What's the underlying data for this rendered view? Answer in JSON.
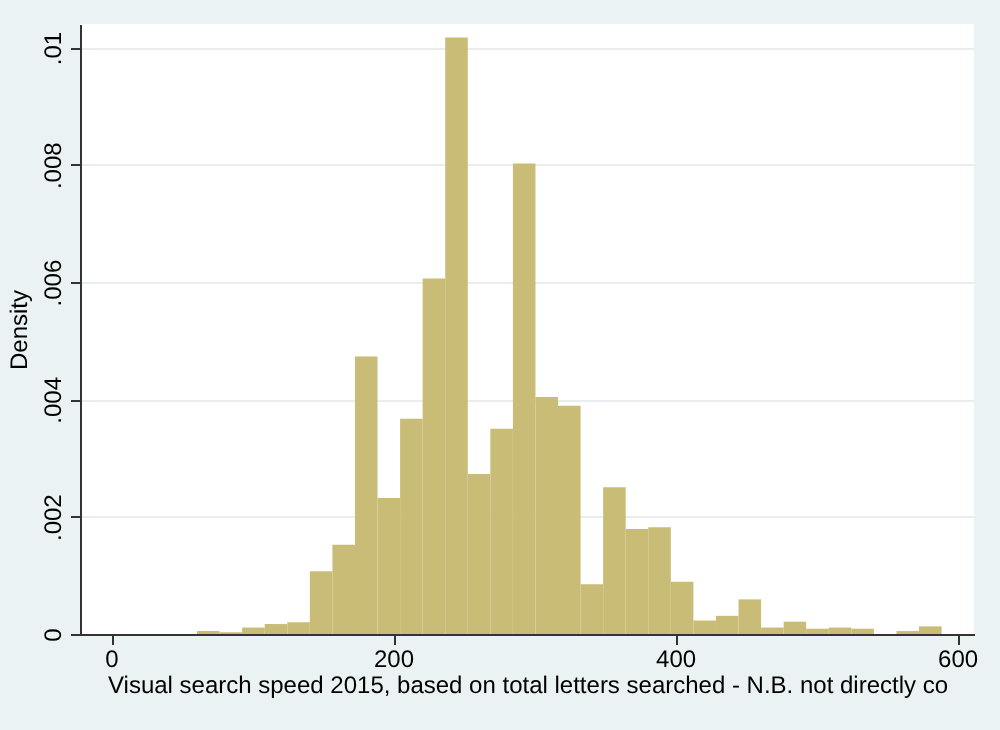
{
  "chart_data": {
    "type": "histogram",
    "xlabel": "Visual search speed 2015, based on total letters searched - N.B. not directly co",
    "ylabel": "Density",
    "bins": [
      61,
      77,
      93,
      109,
      125,
      141,
      157,
      173,
      189,
      205,
      221,
      237,
      253,
      269,
      285,
      301,
      317,
      333,
      349,
      365,
      381,
      397,
      413,
      429,
      445,
      461,
      477,
      493,
      509,
      525,
      541,
      557,
      573,
      589
    ],
    "values": [
      5e-05,
      3e-05,
      0.00011,
      0.00017,
      0.0002,
      0.00107,
      0.00152,
      0.00473,
      0.00232,
      0.00367,
      0.00606,
      0.01017,
      0.00273,
      0.0035,
      0.00802,
      0.00404,
      0.00389,
      0.00085,
      0.0025,
      0.00179,
      0.00182,
      0.00089,
      0.00023,
      0.00031,
      0.00059,
      0.00011,
      0.00021,
      9e-05,
      0.00011,
      9e-05,
      0,
      5e-05,
      0.00013
    ],
    "color": "#c9bc76",
    "xlim": [
      -22,
      612
    ],
    "xticks": [
      0,
      200,
      400,
      600
    ],
    "ylim": [
      0,
      0.0104
    ],
    "yticks": [
      {
        "value": 0,
        "label": "0"
      },
      {
        "value": 0.002,
        "label": ".002"
      },
      {
        "value": 0.004,
        "label": ".004"
      },
      {
        "value": 0.006,
        "label": ".006"
      },
      {
        "value": 0.008,
        "label": ".008"
      },
      {
        "value": 0.01,
        "label": ".01"
      }
    ],
    "grid": "y"
  }
}
